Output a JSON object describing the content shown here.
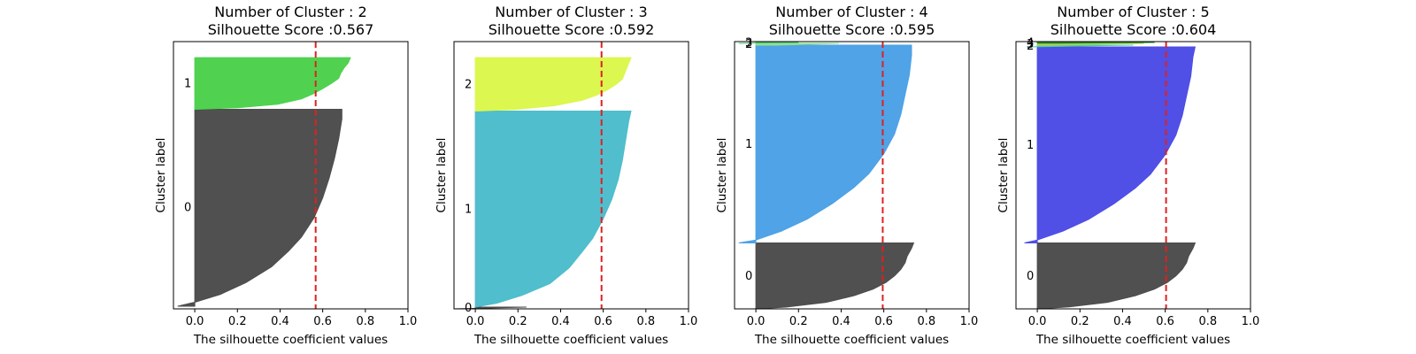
{
  "chart_data": [
    {
      "type": "area",
      "title_line1": "Number of Cluster : 2",
      "title_line2": "Silhouette Score :0.567",
      "xlabel": "The silhouette coefficient values",
      "ylabel": "Cluster label",
      "xlim": [
        -0.1,
        1.0
      ],
      "xticks": [
        "0.0",
        "0.2",
        "0.4",
        "0.6",
        "0.8",
        "1.0"
      ],
      "silhouette_score": 0.567,
      "total_samples": 300,
      "clusters": [
        {
          "label": "0",
          "color": "#4d4d4d",
          "start": 3,
          "size": 221,
          "profile": [
            [
              0,
              0.69
            ],
            [
              0.05,
              0.69
            ],
            [
              0.15,
              0.675
            ],
            [
              0.25,
              0.655
            ],
            [
              0.35,
              0.63
            ],
            [
              0.45,
              0.6
            ],
            [
              0.55,
              0.56
            ],
            [
              0.65,
              0.5
            ],
            [
              0.72,
              0.44
            ],
            [
              0.8,
              0.36
            ],
            [
              0.88,
              0.24
            ],
            [
              0.94,
              0.12
            ],
            [
              0.98,
              0.0
            ],
            [
              1.0,
              -0.08
            ]
          ]
        },
        {
          "label": "1",
          "color": "#4dd14d",
          "start": 224,
          "size": 58,
          "profile": [
            [
              0,
              0.73
            ],
            [
              0.1,
              0.72
            ],
            [
              0.2,
              0.7
            ],
            [
              0.3,
              0.685
            ],
            [
              0.4,
              0.675
            ],
            [
              0.5,
              0.64
            ],
            [
              0.6,
              0.6
            ],
            [
              0.7,
              0.555
            ],
            [
              0.8,
              0.5
            ],
            [
              0.9,
              0.39
            ],
            [
              0.97,
              0.2
            ],
            [
              1.0,
              0.0
            ]
          ]
        }
      ]
    },
    {
      "type": "area",
      "title_line1": "Number of Cluster : 3",
      "title_line2": "Silhouette Score :0.592",
      "xlabel": "The silhouette coefficient values",
      "ylabel": "Cluster label",
      "xlim": [
        -0.1,
        1.0
      ],
      "xticks": [
        "0.0",
        "0.2",
        "0.4",
        "0.6",
        "0.8",
        "1.0"
      ],
      "silhouette_score": 0.592,
      "total_samples": 300,
      "clusters": [
        {
          "label": "0",
          "color": "#4d4d4d",
          "start": 0,
          "size": 2,
          "profile": [
            [
              0,
              0.24
            ],
            [
              1.0,
              -0.1
            ]
          ]
        },
        {
          "label": "1",
          "color": "#4dbdcc",
          "start": 2,
          "size": 220,
          "profile": [
            [
              0,
              0.73
            ],
            [
              0.05,
              0.72
            ],
            [
              0.15,
              0.705
            ],
            [
              0.25,
              0.69
            ],
            [
              0.35,
              0.67
            ],
            [
              0.45,
              0.64
            ],
            [
              0.55,
              0.6
            ],
            [
              0.65,
              0.55
            ],
            [
              0.72,
              0.5
            ],
            [
              0.8,
              0.44
            ],
            [
              0.88,
              0.35
            ],
            [
              0.94,
              0.22
            ],
            [
              0.98,
              0.1
            ],
            [
              1.0,
              0.0
            ]
          ]
        },
        {
          "label": "2",
          "color": "#dbf74d",
          "start": 222,
          "size": 60,
          "profile": [
            [
              0,
              0.73
            ],
            [
              0.1,
              0.72
            ],
            [
              0.2,
              0.71
            ],
            [
              0.3,
              0.7
            ],
            [
              0.4,
              0.69
            ],
            [
              0.5,
              0.66
            ],
            [
              0.6,
              0.62
            ],
            [
              0.7,
              0.57
            ],
            [
              0.8,
              0.5
            ],
            [
              0.9,
              0.37
            ],
            [
              0.97,
              0.18
            ],
            [
              1.0,
              0.0
            ]
          ]
        }
      ]
    },
    {
      "type": "area",
      "title_line1": "Number of Cluster : 4",
      "title_line2": "Silhouette Score :0.595",
      "xlabel": "The silhouette coefficient values",
      "ylabel": "Cluster label",
      "xlim": [
        -0.1,
        1.0
      ],
      "xticks": [
        "0.0",
        "0.2",
        "0.4",
        "0.6",
        "0.8",
        "1.0"
      ],
      "silhouette_score": 0.595,
      "total_samples": 300,
      "clusters": [
        {
          "label": "0",
          "color": "#4d4d4d",
          "start": 0,
          "size": 74,
          "profile": [
            [
              0,
              0.74
            ],
            [
              0.08,
              0.73
            ],
            [
              0.2,
              0.71
            ],
            [
              0.3,
              0.7
            ],
            [
              0.4,
              0.68
            ],
            [
              0.5,
              0.65
            ],
            [
              0.6,
              0.61
            ],
            [
              0.7,
              0.55
            ],
            [
              0.8,
              0.46
            ],
            [
              0.9,
              0.33
            ],
            [
              0.97,
              0.15
            ],
            [
              1.0,
              0.0
            ]
          ]
        },
        {
          "label": "1",
          "color": "#4ca1e6",
          "start": 74,
          "size": 222,
          "profile": [
            [
              0,
              0.73
            ],
            [
              0.05,
              0.73
            ],
            [
              0.15,
              0.72
            ],
            [
              0.25,
              0.7
            ],
            [
              0.35,
              0.68
            ],
            [
              0.45,
              0.65
            ],
            [
              0.55,
              0.6
            ],
            [
              0.65,
              0.53
            ],
            [
              0.72,
              0.46
            ],
            [
              0.8,
              0.36
            ],
            [
              0.88,
              0.24
            ],
            [
              0.94,
              0.12
            ],
            [
              0.985,
              0.0
            ],
            [
              1.0,
              -0.08
            ]
          ]
        },
        {
          "label": "2",
          "color": "#8fe08f",
          "start": 296,
          "size": 2,
          "profile": [
            [
              0,
              0.39
            ],
            [
              1.0,
              0.1
            ]
          ]
        },
        {
          "label": "3",
          "color": "#4dc472",
          "start": 298,
          "size": 1,
          "profile": [
            [
              0,
              0.2
            ],
            [
              1.0,
              -0.08
            ]
          ]
        }
      ]
    },
    {
      "type": "area",
      "title_line1": "Number of Cluster : 5",
      "title_line2": "Silhouette Score :0.604",
      "xlabel": "The silhouette coefficient values",
      "ylabel": "Cluster label",
      "xlim": [
        -0.1,
        1.0
      ],
      "xticks": [
        "0.0",
        "0.2",
        "0.4",
        "0.6",
        "0.8",
        "1.0"
      ],
      "silhouette_score": 0.604,
      "total_samples": 300,
      "clusters": [
        {
          "label": "0",
          "color": "#4d4d4d",
          "start": 0,
          "size": 74,
          "profile": [
            [
              0,
              0.74
            ],
            [
              0.08,
              0.73
            ],
            [
              0.2,
              0.71
            ],
            [
              0.3,
              0.7
            ],
            [
              0.4,
              0.68
            ],
            [
              0.5,
              0.65
            ],
            [
              0.6,
              0.61
            ],
            [
              0.7,
              0.55
            ],
            [
              0.8,
              0.46
            ],
            [
              0.9,
              0.33
            ],
            [
              0.97,
              0.15
            ],
            [
              1.0,
              0.0
            ]
          ]
        },
        {
          "label": "1",
          "color": "#4d4de6",
          "start": 74,
          "size": 220,
          "profile": [
            [
              0,
              0.74
            ],
            [
              0.05,
              0.73
            ],
            [
              0.15,
              0.72
            ],
            [
              0.25,
              0.7
            ],
            [
              0.35,
              0.68
            ],
            [
              0.45,
              0.65
            ],
            [
              0.55,
              0.6
            ],
            [
              0.65,
              0.53
            ],
            [
              0.72,
              0.46
            ],
            [
              0.8,
              0.36
            ],
            [
              0.88,
              0.24
            ],
            [
              0.94,
              0.12
            ],
            [
              0.985,
              0.0
            ],
            [
              1.0,
              -0.06
            ]
          ]
        },
        {
          "label": "2",
          "color": "#4dccab",
          "start": 294,
          "size": 2,
          "profile": [
            [
              0,
              0.45
            ],
            [
              1.0,
              -0.05
            ]
          ]
        },
        {
          "label": "3",
          "color": "#b5d64d",
          "start": 296,
          "size": 2,
          "profile": [
            [
              0,
              0.5
            ],
            [
              1.0,
              0.05
            ]
          ]
        },
        {
          "label": "4",
          "color": "#2e8b2e",
          "start": 298,
          "size": 1,
          "profile": [
            [
              0,
              0.55
            ],
            [
              1.0,
              0.1
            ]
          ]
        }
      ]
    }
  ]
}
